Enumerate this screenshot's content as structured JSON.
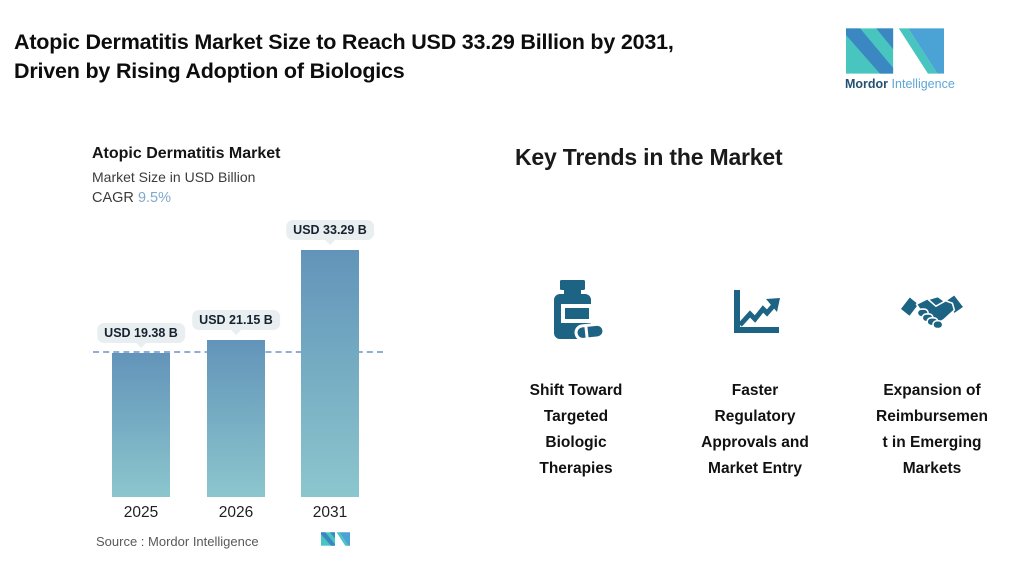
{
  "header": {
    "title": "Atopic Dermatitis Market Size to Reach USD 33.29 Billion by 2031,\nDriven by Rising Adoption of Biologics"
  },
  "brand": {
    "name_bold": "Mordor",
    "name_light": "Intelligence"
  },
  "chart": {
    "title": "Atopic Dermatitis Market",
    "subtitle": "Market Size in USD Billion",
    "cagr_label": "CAGR",
    "cagr_value": "9.5%",
    "source": "Source :  Mordor Intelligence"
  },
  "chart_data": {
    "type": "bar",
    "title": "Atopic Dermatitis Market",
    "ylabel": "Market Size in USD Billion",
    "categories": [
      "2025",
      "2026",
      "2031"
    ],
    "values": [
      19.38,
      21.15,
      33.29
    ],
    "value_labels": [
      "USD 19.38 B",
      "USD 21.15 B",
      "USD 33.29 B"
    ],
    "cagr_percent": 9.5,
    "reference_line_value": 19.38,
    "grid": "off",
    "legend": "none",
    "bar_color_top": "#6294b9",
    "bar_color_bottom": "#8cc6cd"
  },
  "trends": {
    "heading": "Key Trends in the Market",
    "items": [
      {
        "icon": "pill-bottle-icon",
        "label": "Shift Toward\nTargeted\nBiologic\nTherapies"
      },
      {
        "icon": "line-chart-up-icon",
        "label": "Faster\nRegulatory\nApprovals and\nMarket Entry"
      },
      {
        "icon": "handshake-icon",
        "label": "Expansion of\nReimbursemen\nt in Emerging\nMarkets"
      }
    ]
  },
  "colors": {
    "icon_blue": "#1d6384",
    "dashed_line": "#8fadd6",
    "cagr_value": "#7fa9cd",
    "label_pill_bg": "#e9eef1",
    "brand_blue": "#3a87c2",
    "brand_teal": "#49c5c0",
    "brand_light_blue": "#4aa3d4",
    "brand_text_dark": "#235172",
    "brand_text_light": "#5ea6d6"
  }
}
